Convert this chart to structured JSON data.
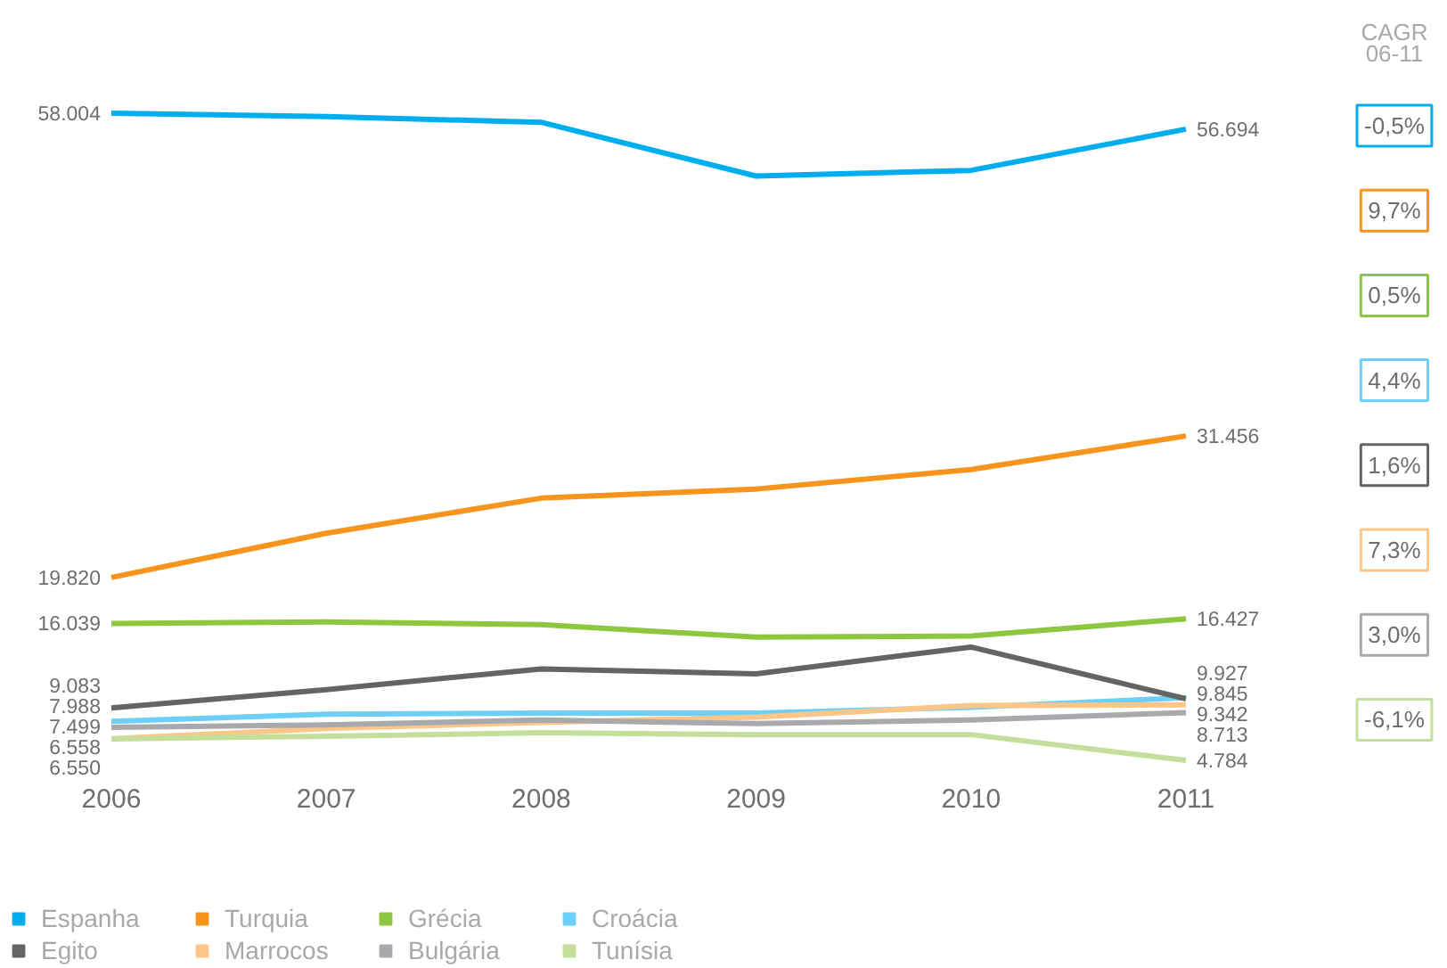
{
  "chart_data": {
    "type": "line",
    "categories": [
      "2006",
      "2007",
      "2008",
      "2009",
      "2010",
      "2011"
    ],
    "tick_labels": "x",
    "legend": "bottom",
    "line_style": "solid",
    "series": [
      {
        "name": "Espanha",
        "color": "#00aeef",
        "values": [
          58004,
          57723,
          57256,
          52834,
          53300,
          56694
        ],
        "value_labels": [
          "58.004",
          null,
          null,
          null,
          null,
          "56.694"
        ]
      },
      {
        "name": "Turquia",
        "color": "#f7941d",
        "values": [
          19820,
          23458,
          26347,
          27096,
          28701,
          31456
        ],
        "value_labels": [
          "19.820",
          null,
          null,
          null,
          null,
          "31.456"
        ]
      },
      {
        "name": "Grécia",
        "color": "#8dc63f",
        "values": [
          16039,
          16165,
          15939,
          14915,
          15007,
          16427
        ],
        "value_labels": [
          "16.039",
          null,
          null,
          null,
          null,
          "16.427"
        ]
      },
      {
        "name": "Croácia",
        "color": "#6dcff6",
        "values": [
          7988,
          8570,
          8667,
          8667,
          9152,
          9927
        ],
        "value_labels": [
          "7.988",
          null,
          null,
          null,
          null,
          "9.927"
        ]
      },
      {
        "name": "Egito",
        "color": "#636466",
        "values": [
          9083,
          10600,
          12300,
          11900,
          14100,
          9845
        ],
        "value_labels": [
          "9.083",
          null,
          null,
          null,
          null,
          "9.845"
        ]
      },
      {
        "name": "Marrocos",
        "color": "#fdc689",
        "values": [
          6558,
          7400,
          7900,
          8340,
          9290,
          9342
        ],
        "value_labels": [
          "6.558",
          null,
          null,
          null,
          null,
          "9.342"
        ]
      },
      {
        "name": "Bulgária",
        "color": "#a7a9ac",
        "values": [
          7499,
          7700,
          8100,
          7800,
          8100,
          8713
        ],
        "value_labels": [
          "7.499",
          null,
          null,
          null,
          null,
          "8.713"
        ]
      },
      {
        "name": "Tunísia",
        "color": "#c4df9b",
        "values": [
          6550,
          6762,
          7050,
          6900,
          6900,
          4784
        ],
        "value_labels": [
          "6.550",
          null,
          null,
          null,
          null,
          "4.784"
        ]
      }
    ],
    "annotations": [
      "CAGR\n06-11",
      "-0,5%",
      "9,7%",
      "0,5%",
      "4,4%",
      "1,6%",
      "7,3%",
      "3,0%",
      "-6,1%"
    ]
  }
}
